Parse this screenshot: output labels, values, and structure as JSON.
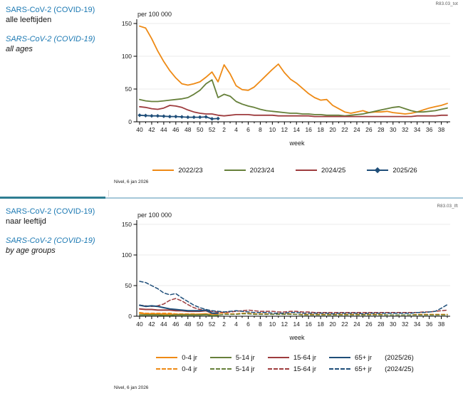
{
  "panels": [
    {
      "title_nl": "SARS-CoV-2 (COVID-19)",
      "subtitle_nl": "alle leeftijden",
      "title_en": "SARS-CoV-2 (COVID-19)",
      "subtitle_en": "all ages",
      "code": "R83.03_tot",
      "source": "Nivel, 6 jan 2026"
    },
    {
      "title_nl": "SARS-CoV-2 (COVID-19)",
      "subtitle_nl": "naar leeftijd",
      "title_en": "SARS-CoV-2 (COVID-19)",
      "subtitle_en": "by age groups",
      "code": "R83.03_lft",
      "source": "Nivel, 6 jan 2026"
    }
  ],
  "colors": {
    "orange": "#ee8a15",
    "green": "#66803a",
    "red": "#9e3c3e",
    "navy": "#1f4e79",
    "title_blue": "#1c79b3"
  },
  "chart_data": [
    {
      "type": "line",
      "unit_label": "per 100 000",
      "xlabel": "week",
      "ylim": [
        0,
        150
      ],
      "yticks": [
        0,
        50,
        100,
        150
      ],
      "grid": true,
      "legend_position": "bottom",
      "weeks": [
        40,
        41,
        42,
        43,
        44,
        45,
        46,
        47,
        48,
        49,
        50,
        51,
        52,
        1,
        2,
        3,
        4,
        5,
        6,
        7,
        8,
        9,
        10,
        11,
        12,
        13,
        14,
        15,
        16,
        17,
        18,
        19,
        20,
        21,
        22,
        23,
        24,
        25,
        26,
        27,
        28,
        29,
        30,
        31,
        32,
        33,
        34,
        35,
        36,
        37,
        38,
        39
      ],
      "series": [
        {
          "name": "2022/23",
          "color": "#ee8a15",
          "dash": false,
          "marker": false,
          "values": [
            146,
            143,
            127,
            108,
            92,
            78,
            67,
            58,
            56,
            58,
            61,
            68,
            76,
            61,
            87,
            73,
            55,
            49,
            48,
            53,
            62,
            71,
            80,
            88,
            75,
            65,
            59,
            51,
            43,
            37,
            33,
            34,
            25,
            20,
            15,
            13,
            15,
            17,
            14,
            15,
            15,
            16,
            14,
            13,
            12,
            13,
            15,
            18,
            21,
            23,
            25,
            28
          ]
        },
        {
          "name": "2023/24",
          "color": "#66803a",
          "dash": false,
          "marker": false,
          "values": [
            34,
            32,
            31,
            31,
            32,
            33,
            34,
            35,
            37,
            42,
            48,
            58,
            64,
            37,
            42,
            39,
            31,
            27,
            24,
            22,
            19,
            17,
            16,
            15,
            14,
            13,
            13,
            12,
            12,
            11,
            11,
            10,
            10,
            10,
            9,
            10,
            11,
            12,
            14,
            16,
            18,
            20,
            22,
            23,
            20,
            17,
            15,
            15,
            16,
            17,
            19,
            21
          ]
        },
        {
          "name": "2024/25",
          "color": "#9e3c3e",
          "dash": false,
          "marker": false,
          "values": [
            23,
            22,
            20,
            19,
            21,
            25,
            24,
            22,
            18,
            15,
            13,
            12,
            12,
            10,
            9,
            10,
            11,
            11,
            11,
            10,
            10,
            10,
            10,
            9,
            9,
            9,
            9,
            9,
            9,
            8,
            8,
            8,
            8,
            8,
            8,
            8,
            8,
            8,
            8,
            8,
            8,
            8,
            8,
            8,
            8,
            8,
            9,
            9,
            9,
            9,
            10,
            10
          ]
        },
        {
          "name": "2025/26",
          "color": "#1f4e79",
          "dash": false,
          "marker": "diamond",
          "values": [
            10,
            9.5,
            9,
            9,
            8.5,
            8,
            8,
            7.5,
            7,
            7,
            7,
            7.5,
            4.5,
            5
          ]
        }
      ]
    },
    {
      "type": "line",
      "unit_label": "per 100 000",
      "xlabel": "week",
      "ylim": [
        0,
        150
      ],
      "yticks": [
        0,
        50,
        100,
        150
      ],
      "grid": true,
      "legend_position": "bottom",
      "weeks": [
        40,
        41,
        42,
        43,
        44,
        45,
        46,
        47,
        48,
        49,
        50,
        51,
        52,
        1,
        2,
        3,
        4,
        5,
        6,
        7,
        8,
        9,
        10,
        11,
        12,
        13,
        14,
        15,
        16,
        17,
        18,
        19,
        20,
        21,
        22,
        23,
        24,
        25,
        26,
        27,
        28,
        29,
        30,
        31,
        32,
        33,
        34,
        35,
        36,
        37,
        38,
        39
      ],
      "legend_rows": [
        {
          "label": "(2025/26)",
          "dash": false
        },
        {
          "label": "(2024/25)",
          "dash": true
        }
      ],
      "series": [
        {
          "name": "0-4 jr",
          "group": "2025/26",
          "color": "#ee8a15",
          "dash": false,
          "marker": false,
          "values": [
            5,
            4,
            4,
            4,
            3.5,
            3,
            3,
            3,
            3,
            3,
            3.5,
            4,
            2,
            2.5
          ]
        },
        {
          "name": "5-14 jr",
          "group": "2025/26",
          "color": "#66803a",
          "dash": false,
          "marker": false,
          "values": [
            2,
            2,
            2,
            2,
            1.5,
            1.5,
            2,
            2,
            2,
            2,
            2,
            2.5,
            1,
            1.5
          ]
        },
        {
          "name": "15-64 jr",
          "group": "2025/26",
          "color": "#9e3c3e",
          "dash": false,
          "marker": false,
          "values": [
            12,
            11,
            11,
            10,
            10,
            10,
            9,
            9,
            8,
            8,
            8,
            9,
            5,
            5
          ]
        },
        {
          "name": "65+ jr",
          "group": "2025/26",
          "color": "#1f4e79",
          "dash": false,
          "marker": false,
          "values": [
            18,
            16,
            17,
            16,
            14,
            12,
            11,
            10,
            9,
            9,
            9,
            10,
            5,
            5
          ]
        },
        {
          "name": "0-4 jr",
          "group": "2024/25",
          "color": "#ee8a15",
          "dash": true,
          "marker": false,
          "values": [
            6,
            5,
            5,
            5,
            5,
            5,
            4,
            4,
            4,
            4,
            3,
            3,
            4,
            5,
            5,
            4,
            4,
            5,
            5,
            4,
            4,
            4,
            3,
            4,
            4,
            4,
            3,
            3,
            3,
            3,
            3,
            3,
            3,
            3,
            3,
            3,
            3,
            3,
            3,
            3,
            3,
            2,
            2,
            2,
            2,
            2,
            3,
            3,
            3,
            3,
            3,
            3
          ]
        },
        {
          "name": "5-14 jr",
          "group": "2024/25",
          "color": "#66803a",
          "dash": true,
          "marker": false,
          "values": [
            2,
            2,
            2,
            2,
            3,
            3,
            3,
            3,
            2,
            2,
            2,
            2,
            2,
            2,
            3,
            3,
            3,
            4,
            4,
            3,
            3,
            3,
            3,
            3,
            3,
            3,
            3,
            2,
            2,
            2,
            2,
            2,
            2,
            2,
            2,
            2,
            2,
            2,
            2,
            2,
            2,
            2,
            2,
            2,
            2,
            2,
            2,
            2,
            2,
            2,
            2,
            2
          ]
        },
        {
          "name": "15-64 jr",
          "group": "2024/25",
          "color": "#9e3c3e",
          "dash": true,
          "marker": false,
          "values": [
            18,
            17,
            16,
            17,
            20,
            26,
            29,
            25,
            19,
            14,
            11,
            9,
            8,
            7,
            6,
            7,
            8,
            9,
            10,
            9,
            8,
            8,
            8,
            7,
            7,
            8,
            8,
            7,
            7,
            6,
            6,
            6,
            6,
            6,
            6,
            6,
            6,
            6,
            6,
            6,
            6,
            6,
            6,
            6,
            6,
            6,
            6,
            7,
            7,
            8,
            9,
            10
          ]
        },
        {
          "name": "65+ jr",
          "group": "2024/25",
          "color": "#1f4e79",
          "dash": true,
          "marker": false,
          "values": [
            57,
            55,
            50,
            45,
            38,
            35,
            37,
            30,
            24,
            18,
            14,
            11,
            9,
            8,
            7,
            8,
            9,
            8,
            7,
            6,
            6,
            6,
            5,
            5,
            5,
            6,
            6,
            5,
            5,
            5,
            5,
            5,
            4,
            5,
            5,
            5,
            5,
            4,
            5,
            5,
            5,
            5,
            5,
            5,
            5,
            5,
            6,
            6,
            7,
            8,
            13,
            19
          ]
        }
      ]
    }
  ]
}
